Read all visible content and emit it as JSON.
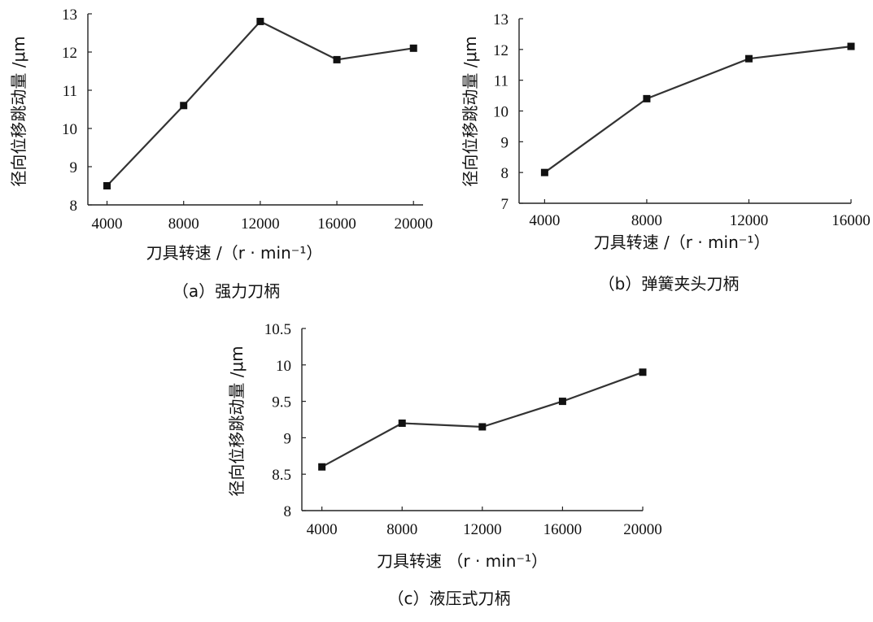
{
  "chart_data": [
    {
      "type": "line",
      "x": [
        4000,
        8000,
        12000,
        16000,
        20000
      ],
      "series": [
        {
          "values": [
            8.5,
            10.6,
            12.8,
            11.8,
            12.1
          ]
        }
      ],
      "xlabel": "刀具转速 /（r · min⁻¹）",
      "ylabel": "径向位移跳动量 /μm",
      "caption": "（a）强力刀柄",
      "xlim": [
        3000,
        20500
      ],
      "ylim": [
        8,
        13
      ],
      "xticks": [
        4000,
        8000,
        12000,
        16000,
        20000
      ],
      "yticks": [
        8,
        9,
        10,
        11,
        12,
        13
      ],
      "grid": false,
      "marker": "square"
    },
    {
      "type": "line",
      "x": [
        4000,
        8000,
        12000,
        16000
      ],
      "series": [
        {
          "values": [
            8.0,
            10.4,
            11.7,
            12.1
          ]
        }
      ],
      "xlabel": "刀具转速 /（r · min⁻¹）",
      "ylabel": "径向位移跳动量 /μm",
      "caption": "（b）弹簧夹头刀柄",
      "xlim": [
        3000,
        16000
      ],
      "ylim": [
        7,
        13
      ],
      "xticks": [
        4000,
        8000,
        12000,
        16000
      ],
      "yticks": [
        7,
        8,
        9,
        10,
        11,
        12,
        13
      ],
      "grid": false,
      "marker": "square"
    },
    {
      "type": "line",
      "x": [
        4000,
        8000,
        12000,
        16000,
        20000
      ],
      "series": [
        {
          "values": [
            8.6,
            9.2,
            9.15,
            9.5,
            9.9
          ]
        }
      ],
      "xlabel": "刀具转速  （r · min⁻¹）",
      "ylabel": "径向位移跳动量 /μm",
      "caption": "（c）液压式刀柄",
      "xlim": [
        3000,
        20000
      ],
      "ylim": [
        8,
        10.5
      ],
      "xticks": [
        4000,
        8000,
        12000,
        16000,
        20000
      ],
      "yticks": [
        8,
        8.5,
        9,
        9.5,
        10,
        10.5
      ],
      "grid": false,
      "marker": "square"
    }
  ]
}
